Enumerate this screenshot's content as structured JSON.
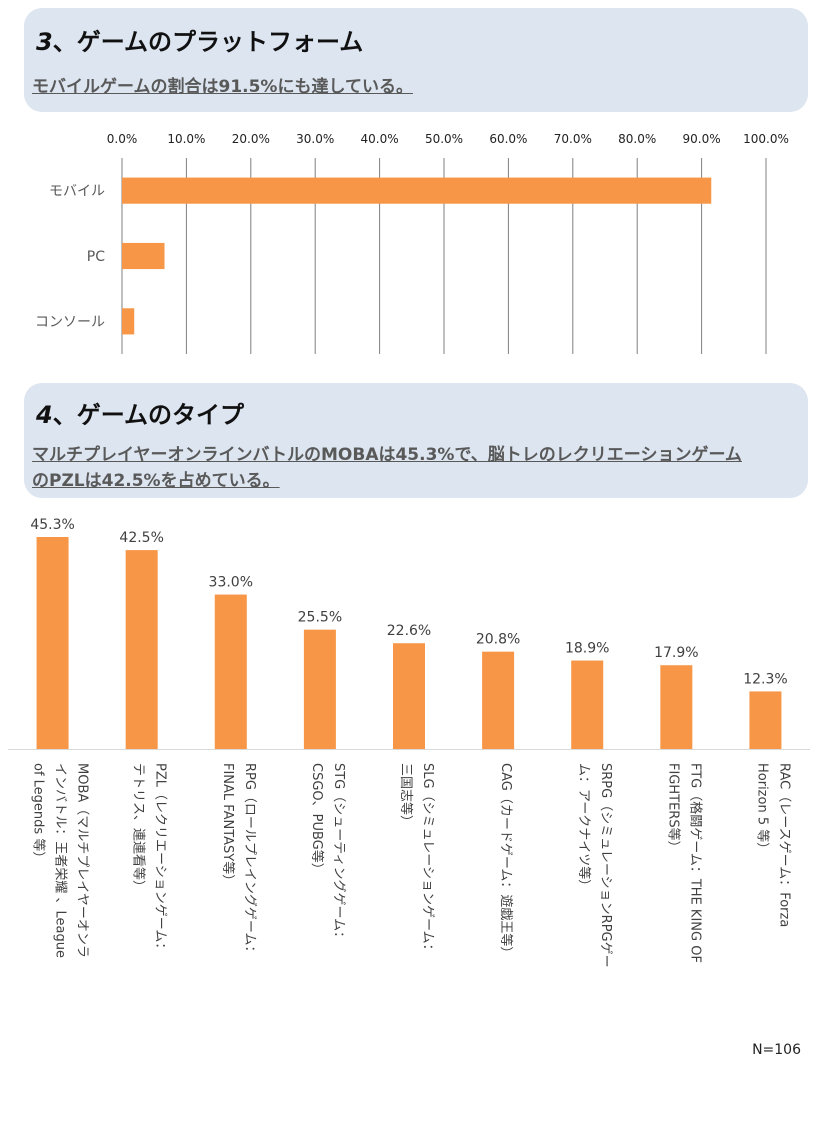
{
  "section3": {
    "number": "3",
    "title": "、ゲームのプラットフォーム",
    "subtitle": "モバイルゲームの割合は91.5%にも達している。"
  },
  "section4": {
    "number": "4",
    "title": "、ゲームのタイプ",
    "subtitle_line1": "マルチプレイヤーオンラインバトルのMOBAは45.3%で、脳トレのレクリエーションゲーム",
    "subtitle_line2": "のPZLは42.5%を占めている。"
  },
  "footnote": "N=106",
  "colors": {
    "bar": "#f79646",
    "panel": "#dce5f0",
    "grid": "#7f7f7f"
  },
  "chart_data": [
    {
      "type": "bar",
      "orientation": "horizontal",
      "categories": [
        "モバイル",
        "PC",
        "コンソール"
      ],
      "values": [
        91.5,
        6.6,
        1.9
      ],
      "xlim": [
        0,
        100
      ],
      "tick_labels": [
        "0.0%",
        "10.0%",
        "20.0%",
        "30.0%",
        "40.0%",
        "50.0%",
        "60.0%",
        "70.0%",
        "80.0%",
        "90.0%",
        "100.0%"
      ],
      "axis_position": "top",
      "grid": true
    },
    {
      "type": "bar",
      "orientation": "vertical",
      "categories": [
        [
          "MOBA（マルチプレイヤーオンラ",
          "インバトル：王者栄耀 、League",
          "of Legends 等）"
        ],
        [
          "PZL（レクリエーションゲーム：",
          "テトリス、連連看等）"
        ],
        [
          "RPG（ロールプレイングゲーム：",
          "FINAL FANTASY等）"
        ],
        [
          "STG（シューティングゲーム：",
          "CSGO、PUBG等）"
        ],
        [
          "SLG（シミュレーションゲーム：",
          "三国志等）"
        ],
        [
          "CAG（カードゲーム：遊戯王等）"
        ],
        [
          "SRPG（シミュレーションRPGゲー",
          "ム：アークナイツ等）"
        ],
        [
          "FTG（格闘ゲーム：THE KING OF",
          "FIGHTERS等）"
        ],
        [
          "RAC（レースゲーム：Forza",
          "Horizon 5 等）"
        ]
      ],
      "values": [
        45.3,
        42.5,
        33.0,
        25.5,
        22.6,
        20.8,
        18.9,
        17.9,
        12.3
      ],
      "data_labels": [
        "45.3%",
        "42.5%",
        "33.0%",
        "25.5%",
        "22.6%",
        "20.8%",
        "18.9%",
        "17.9%",
        "12.3%"
      ],
      "ylim": [
        0,
        45.3
      ],
      "grid": false
    }
  ]
}
